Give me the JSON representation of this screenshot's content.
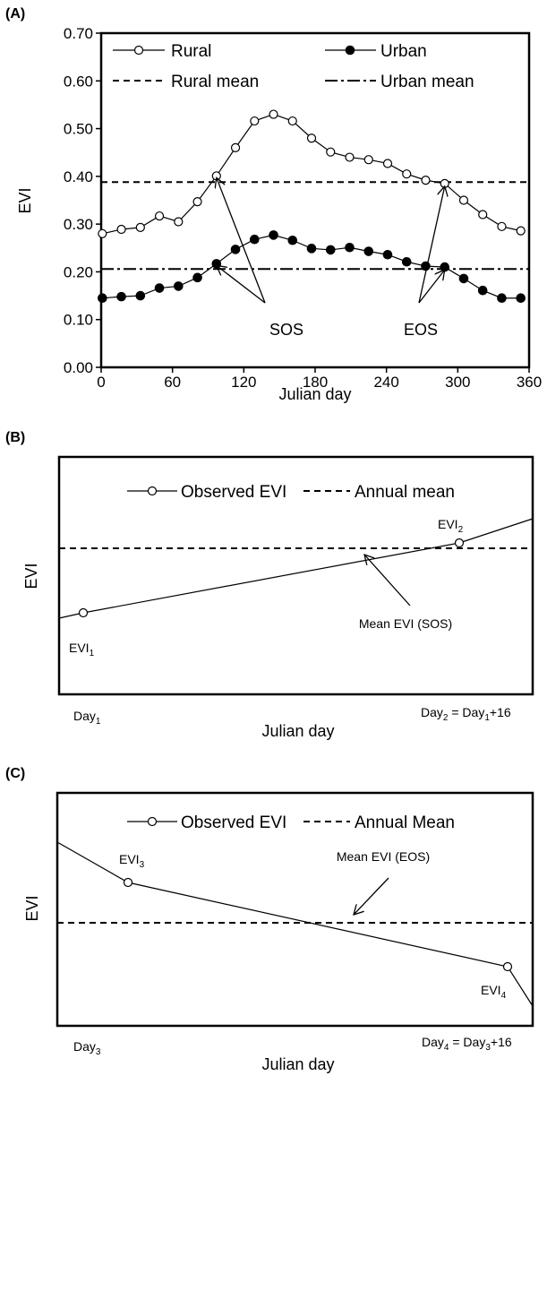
{
  "chart_data": [
    {
      "panel": "(A)",
      "type": "line",
      "xlabel": "Julian day",
      "ylabel": "EVI",
      "xlim": [
        0,
        360
      ],
      "ylim": [
        0,
        0.7
      ],
      "xticks": [
        "0",
        "60",
        "120",
        "180",
        "240",
        "300",
        "360"
      ],
      "yticks": [
        "0.00",
        "0.10",
        "0.20",
        "0.30",
        "0.40",
        "0.50",
        "0.60",
        "0.70"
      ],
      "x": [
        1,
        17,
        33,
        49,
        65,
        81,
        97,
        113,
        129,
        145,
        161,
        177,
        193,
        209,
        225,
        241,
        257,
        273,
        289,
        305,
        321,
        337,
        353
      ],
      "series": [
        {
          "name": "Rural",
          "marker": "open-circle",
          "values": [
            0.28,
            0.289,
            0.293,
            0.317,
            0.305,
            0.347,
            0.401,
            0.46,
            0.516,
            0.53,
            0.516,
            0.48,
            0.451,
            0.44,
            0.435,
            0.427,
            0.405,
            0.392,
            0.385,
            0.35,
            0.32,
            0.295,
            0.286
          ]
        },
        {
          "name": "Urban",
          "marker": "filled-circle",
          "values": [
            0.145,
            0.148,
            0.15,
            0.166,
            0.17,
            0.188,
            0.217,
            0.247,
            0.268,
            0.277,
            0.266,
            0.249,
            0.246,
            0.251,
            0.243,
            0.236,
            0.221,
            0.212,
            0.21,
            0.186,
            0.161,
            0.145,
            0.145
          ]
        }
      ],
      "mean_lines": [
        {
          "name": "Rural mean",
          "style": "dashed",
          "value": 0.388
        },
        {
          "name": "Urban mean",
          "style": "dash-dot",
          "value": 0.206
        }
      ],
      "annotations": [
        {
          "text": "SOS",
          "arrow_targets": [
            [
              97,
              0.401
            ],
            [
              97,
              0.217
            ]
          ]
        },
        {
          "text": "EOS",
          "arrow_targets": [
            [
              289,
              0.385
            ],
            [
              289,
              0.21
            ]
          ]
        }
      ],
      "legend": {
        "placement": "top",
        "entries": [
          "Rural",
          "Urban",
          "Rural mean",
          "Urban mean"
        ]
      }
    },
    {
      "panel": "(B)",
      "type": "line",
      "xlabel": "Julian day",
      "ylabel": "EVI",
      "legend": {
        "placement": "top",
        "entries": [
          "Observed EVI",
          "Annual mean"
        ]
      },
      "points": [
        {
          "label": "EVI",
          "sub": "1"
        },
        {
          "label": "EVI",
          "sub": "2"
        }
      ],
      "x_labels": [
        {
          "parts": [
            [
              "Day",
              ""
            ],
            [
              "1",
              "sub"
            ]
          ]
        },
        {
          "parts": [
            [
              "Day",
              ""
            ],
            [
              "2",
              "sub"
            ],
            [
              " = Day",
              ""
            ],
            [
              "1",
              "sub"
            ],
            [
              "+16",
              ""
            ]
          ]
        }
      ],
      "annotation": "Mean EVI (SOS)"
    },
    {
      "panel": "(C)",
      "type": "line",
      "xlabel": "Julian day",
      "ylabel": "EVI",
      "legend": {
        "placement": "top",
        "entries": [
          "Observed EVI",
          "Annual Mean"
        ]
      },
      "points": [
        {
          "label": "EVI",
          "sub": "3"
        },
        {
          "label": "EVI",
          "sub": "4"
        }
      ],
      "x_labels": [
        {
          "parts": [
            [
              "Day",
              ""
            ],
            [
              "3",
              "sub"
            ]
          ]
        },
        {
          "parts": [
            [
              "Day",
              ""
            ],
            [
              "4",
              "sub"
            ],
            [
              " = Day",
              ""
            ],
            [
              "3",
              "sub"
            ],
            [
              "+16",
              ""
            ]
          ]
        }
      ],
      "annotation": "Mean EVI (EOS)"
    }
  ]
}
